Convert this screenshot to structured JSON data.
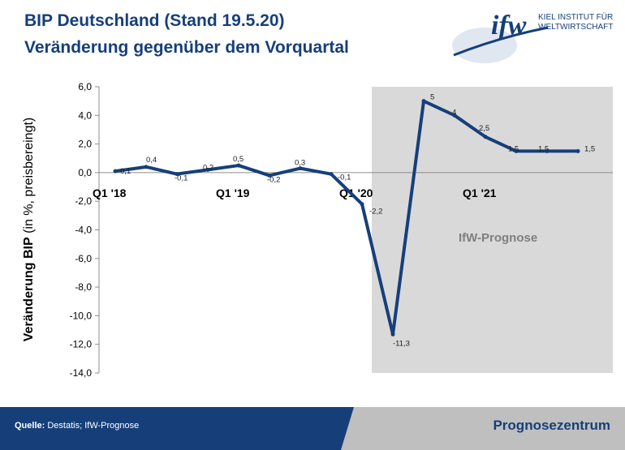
{
  "header": {
    "title_line1": "BIP Deutschland (Stand 19.5.20)",
    "title_line2_prefix": "Veränderung gegenüber dem ",
    "title_line2_bold": "Vorquartal"
  },
  "logo": {
    "mark": "ifw",
    "line1": "KIEL INSTITUT FÜR",
    "line2": "WELTWIRTSCHAFT",
    "accent_color": "#163f7a"
  },
  "axis": {
    "ylabel_bold": "Veränderung BIP",
    "ylabel_rest": " (in %, preisbereingt)"
  },
  "chart_data": {
    "type": "line",
    "title": "BIP Deutschland (Stand 19.5.20) – Veränderung gegenüber dem Vorquartal",
    "ylabel": "Veränderung BIP (in %, preisbereingt)",
    "ylim": [
      -14,
      6
    ],
    "ytick_step": 2,
    "ytick_labels": [
      "6,0",
      "4,0",
      "2,0",
      "0,0",
      "-2,0",
      "-4,0",
      "-6,0",
      "-8,0",
      "-10,0",
      "-12,0",
      "-14,0"
    ],
    "x": [
      0,
      1,
      2,
      3,
      4,
      5,
      6,
      7,
      8,
      9,
      10,
      11,
      12,
      13,
      14,
      15
    ],
    "xtick_labels": [
      {
        "x": 0,
        "label": "Q1 '18"
      },
      {
        "x": 4,
        "label": "Q1 '19"
      },
      {
        "x": 8,
        "label": "Q1 '20"
      },
      {
        "x": 12,
        "label": "Q1 '21"
      }
    ],
    "series": [
      {
        "name": "BIP-Veränderung",
        "color": "#163f7a",
        "values": [
          0.1,
          0.4,
          -0.1,
          0.2,
          0.5,
          -0.2,
          0.3,
          -0.1,
          -2.2,
          -11.3,
          5.0,
          4.0,
          2.5,
          1.5,
          1.5,
          1.5
        ],
        "labels": [
          "0,1",
          "0,4",
          "-0,1",
          "0,2",
          "0,5",
          "-0,2",
          "0,3",
          "-0,1",
          "-2,2",
          "-11,3",
          "5",
          "4",
          "2,5",
          "1,5",
          "1,5",
          "1,5"
        ]
      }
    ],
    "forecast": {
      "from_x": 8.5,
      "label": "IfW-Prognose",
      "shade_color": "#d9d9d9"
    },
    "grid": false
  },
  "footer": {
    "source_label": "Quelle:",
    "source_text": " Destatis; IfW-Prognose",
    "center_label": "Prognosezentrum",
    "bar_color": "#163f7a"
  }
}
